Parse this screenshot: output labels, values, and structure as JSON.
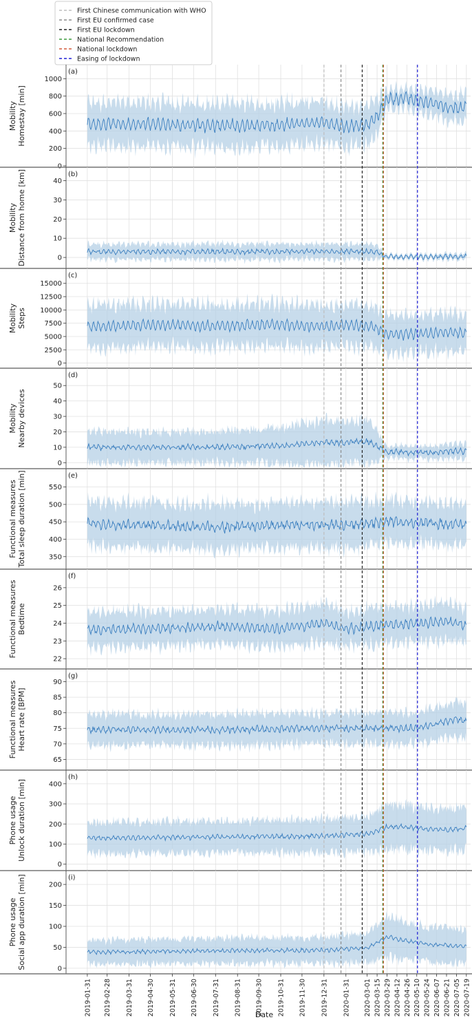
{
  "legend": {
    "placement": "top-left",
    "entries": [
      {
        "label": "First Chinese communication with WHO",
        "color": "#bdbdbd",
        "date": "2019-12-31"
      },
      {
        "label": "First EU confirmed case",
        "color": "#8c8c8c",
        "date": "2020-01-24"
      },
      {
        "label": "First EU lockdown",
        "color": "#222222",
        "date": "2020-02-23"
      },
      {
        "label": "National Recommendation",
        "color": "#3a9a3a",
        "date": "2020-03-23"
      },
      {
        "label": "National lockdown",
        "color": "#d35a3a",
        "date": "2020-03-24"
      },
      {
        "label": "Easing of lockdown",
        "color": "#1f1fd6",
        "date": "2020-05-11"
      }
    ]
  },
  "x_axis": {
    "label": "Date",
    "range": [
      "2019-01-01",
      "2020-07-25"
    ],
    "tick_labels": [
      "2019-01-31",
      "2019-02-28",
      "2019-03-31",
      "2019-04-30",
      "2019-05-31",
      "2019-06-30",
      "2019-07-31",
      "2019-08-31",
      "2019-09-30",
      "2019-10-31",
      "2019-11-30",
      "2019-12-31",
      "2020-01-31",
      "2020-03-01",
      "2020-03-15",
      "2020-03-29",
      "2020-04-12",
      "2020-04-26",
      "2020-05-10",
      "2020-05-24",
      "2020-06-07",
      "2020-06-21",
      "2020-07-05",
      "2020-07-19"
    ],
    "tick_dates": [
      "2019-01-31",
      "2019-02-28",
      "2019-03-31",
      "2019-04-30",
      "2019-05-31",
      "2019-06-30",
      "2019-07-31",
      "2019-08-31",
      "2019-09-30",
      "2019-10-31",
      "2019-11-30",
      "2019-12-31",
      "2020-01-31",
      "2020-03-01",
      "2020-03-15",
      "2020-03-29",
      "2020-04-12",
      "2020-04-26",
      "2020-05-10",
      "2020-05-24",
      "2020-06-07",
      "2020-06-21",
      "2020-07-05",
      "2020-07-19"
    ]
  },
  "chart_data": [
    {
      "type": "line",
      "panel": "(a)",
      "ylabel": [
        "Mobility",
        "Homestay [min]"
      ],
      "ylim": [
        0,
        1050
      ],
      "yticks": [
        0,
        200,
        400,
        600,
        800,
        1000
      ],
      "series": [
        {
          "x": [
            "2019-01-31",
            "2019-04-30",
            "2019-07-31",
            "2019-10-31",
            "2019-12-31",
            "2020-01-31",
            "2020-03-01",
            "2020-03-15",
            "2020-03-29",
            "2020-04-12",
            "2020-04-26",
            "2020-05-10",
            "2020-05-24",
            "2020-06-07",
            "2020-06-21",
            "2020-07-05",
            "2020-07-19"
          ],
          "y": [
            480,
            480,
            460,
            470,
            500,
            440,
            480,
            560,
            770,
            760,
            780,
            740,
            720,
            720,
            680,
            660,
            680
          ],
          "band": [
            250,
            250,
            250,
            250,
            240,
            240,
            220,
            220,
            100,
            110,
            110,
            130,
            140,
            140,
            150,
            160,
            160
          ],
          "weekly": 70,
          "noise": 25
        }
      ],
      "grid": true
    },
    {
      "type": "line",
      "panel": "(b)",
      "ylabel": [
        "Mobility",
        "Distance from home [km]"
      ],
      "ylim": [
        -5,
        42
      ],
      "yticks": [
        0,
        10,
        20,
        30,
        40
      ],
      "series": [
        {
          "x": [
            "2019-01-31",
            "2019-07-31",
            "2019-12-31",
            "2020-03-15",
            "2020-03-24",
            "2020-03-29",
            "2020-07-19"
          ],
          "y": [
            3,
            3,
            3,
            3,
            1,
            0.3,
            0.5
          ],
          "band": [
            4,
            4,
            4,
            4,
            1.5,
            1,
            1.5
          ],
          "weekly": 1.2,
          "noise": 0.6
        }
      ],
      "grid": true
    },
    {
      "type": "line",
      "panel": "(c)",
      "ylabel": [
        "Mobility",
        "Steps"
      ],
      "ylim": [
        -700,
        16000
      ],
      "yticks": [
        0,
        2500,
        5000,
        7500,
        10000,
        12500,
        15000
      ],
      "series": [
        {
          "x": [
            "2019-01-31",
            "2019-04-30",
            "2019-07-31",
            "2019-10-31",
            "2019-12-31",
            "2020-01-31",
            "2020-03-01",
            "2020-03-15",
            "2020-03-29",
            "2020-04-26",
            "2020-05-24",
            "2020-06-21",
            "2020-07-19"
          ],
          "y": [
            6800,
            7200,
            7000,
            7300,
            6800,
            7200,
            7000,
            6500,
            5400,
            5500,
            5600,
            5800,
            5600
          ],
          "band": [
            4000,
            4000,
            4000,
            4000,
            4000,
            4000,
            4000,
            3800,
            3500,
            3500,
            3500,
            3500,
            3500
          ],
          "weekly": 1000,
          "noise": 300
        }
      ],
      "grid": true
    },
    {
      "type": "line",
      "panel": "(d)",
      "ylabel": [
        "Mobility",
        "Nearby devices"
      ],
      "ylim": [
        -3,
        55
      ],
      "yticks": [
        0,
        10,
        20,
        30,
        40,
        50
      ],
      "series": [
        {
          "x": [
            "2019-01-31",
            "2019-07-31",
            "2019-10-31",
            "2019-12-31",
            "2020-01-31",
            "2020-03-01",
            "2020-03-15",
            "2020-03-29",
            "2020-05-10",
            "2020-07-19"
          ],
          "y": [
            10,
            10,
            11,
            13,
            13,
            14,
            11,
            7,
            6.5,
            7.5
          ],
          "band": [
            10,
            10,
            12,
            14,
            14,
            14,
            10,
            4,
            4,
            5
          ],
          "weekly": 1.5,
          "noise": 1
        }
      ],
      "grid": true
    },
    {
      "type": "line",
      "panel": "(e)",
      "ylabel": [
        "Functional measures",
        "Total sleep duration [min]"
      ],
      "ylim": [
        318,
        575
      ],
      "yticks": [
        350,
        400,
        450,
        500,
        550
      ],
      "series": [
        {
          "x": [
            "2019-01-31",
            "2019-04-30",
            "2019-07-31",
            "2019-10-31",
            "2020-01-31",
            "2020-03-29",
            "2020-05-24",
            "2020-07-19"
          ],
          "y": [
            445,
            440,
            435,
            440,
            440,
            450,
            448,
            440
          ],
          "band": [
            65,
            65,
            65,
            65,
            65,
            60,
            60,
            60
          ],
          "weekly": 12,
          "noise": 8
        }
      ],
      "grid": true
    },
    {
      "type": "line",
      "panel": "(f)",
      "ylabel": [
        "Functional measures",
        "Bedtime"
      ],
      "ylim": [
        21.5,
        26.5
      ],
      "yticks": [
        22,
        23,
        24,
        25,
        26
      ],
      "series": [
        {
          "x": [
            "2019-01-31",
            "2019-04-30",
            "2019-07-31",
            "2019-10-31",
            "2019-12-31",
            "2020-01-31",
            "2020-03-29",
            "2020-05-24",
            "2020-06-21",
            "2020-07-19"
          ],
          "y": [
            23.6,
            23.7,
            23.8,
            23.7,
            24.0,
            23.7,
            23.9,
            24.0,
            24.1,
            23.9
          ],
          "band": [
            1.0,
            1.0,
            1.0,
            1.0,
            1.1,
            1.0,
            1.0,
            1.0,
            1.1,
            1.0
          ],
          "weekly": 0.25,
          "noise": 0.12
        }
      ],
      "grid": true
    },
    {
      "type": "line",
      "panel": "(g)",
      "ylabel": [
        "Functional measures",
        "Heart rate [BPM]"
      ],
      "ylim": [
        62,
        91
      ],
      "yticks": [
        65,
        70,
        75,
        80,
        85,
        90
      ],
      "series": [
        {
          "x": [
            "2019-01-31",
            "2019-07-31",
            "2019-12-31",
            "2020-03-29",
            "2020-05-10",
            "2020-06-07",
            "2020-07-05",
            "2020-07-19"
          ],
          "y": [
            74.5,
            74.5,
            75,
            75,
            75,
            76.5,
            78,
            77
          ],
          "band": [
            5,
            5,
            5,
            5,
            5,
            5.5,
            6,
            6
          ],
          "weekly": 0.9,
          "noise": 0.6
        }
      ],
      "grid": true
    },
    {
      "type": "line",
      "panel": "(h)",
      "ylabel": [
        "Phone usage",
        "Unlock duration [min]"
      ],
      "ylim": [
        -25,
        420
      ],
      "yticks": [
        0,
        100,
        200,
        300,
        400
      ],
      "series": [
        {
          "x": [
            "2019-01-31",
            "2019-07-31",
            "2019-12-31",
            "2020-03-01",
            "2020-03-29",
            "2020-04-26",
            "2020-05-24",
            "2020-06-21",
            "2020-07-19"
          ],
          "y": [
            130,
            135,
            140,
            150,
            185,
            185,
            175,
            170,
            180
          ],
          "band": [
            80,
            80,
            85,
            90,
            110,
            110,
            105,
            100,
            110
          ],
          "weekly": 10,
          "noise": 6
        }
      ],
      "grid": true
    },
    {
      "type": "line",
      "panel": "(i)",
      "ylabel": [
        "Phone usage",
        "Social app duration [min]"
      ],
      "ylim": [
        -10,
        210
      ],
      "yticks": [
        0,
        50,
        100,
        150,
        200
      ],
      "series": [
        {
          "x": [
            "2019-01-31",
            "2019-07-31",
            "2019-12-31",
            "2020-03-01",
            "2020-03-29",
            "2020-04-26",
            "2020-05-24",
            "2020-06-21",
            "2020-07-19"
          ],
          "y": [
            38,
            42,
            43,
            48,
            75,
            65,
            58,
            55,
            52
          ],
          "band": [
            28,
            30,
            32,
            35,
            50,
            45,
            42,
            40,
            40
          ],
          "weekly": 4,
          "noise": 2.5
        }
      ],
      "grid": true
    }
  ],
  "colors": {
    "line": "#3a7ebf",
    "band": "#b5d0e6",
    "grid": "#e0e0e0",
    "separator": "#777777"
  }
}
